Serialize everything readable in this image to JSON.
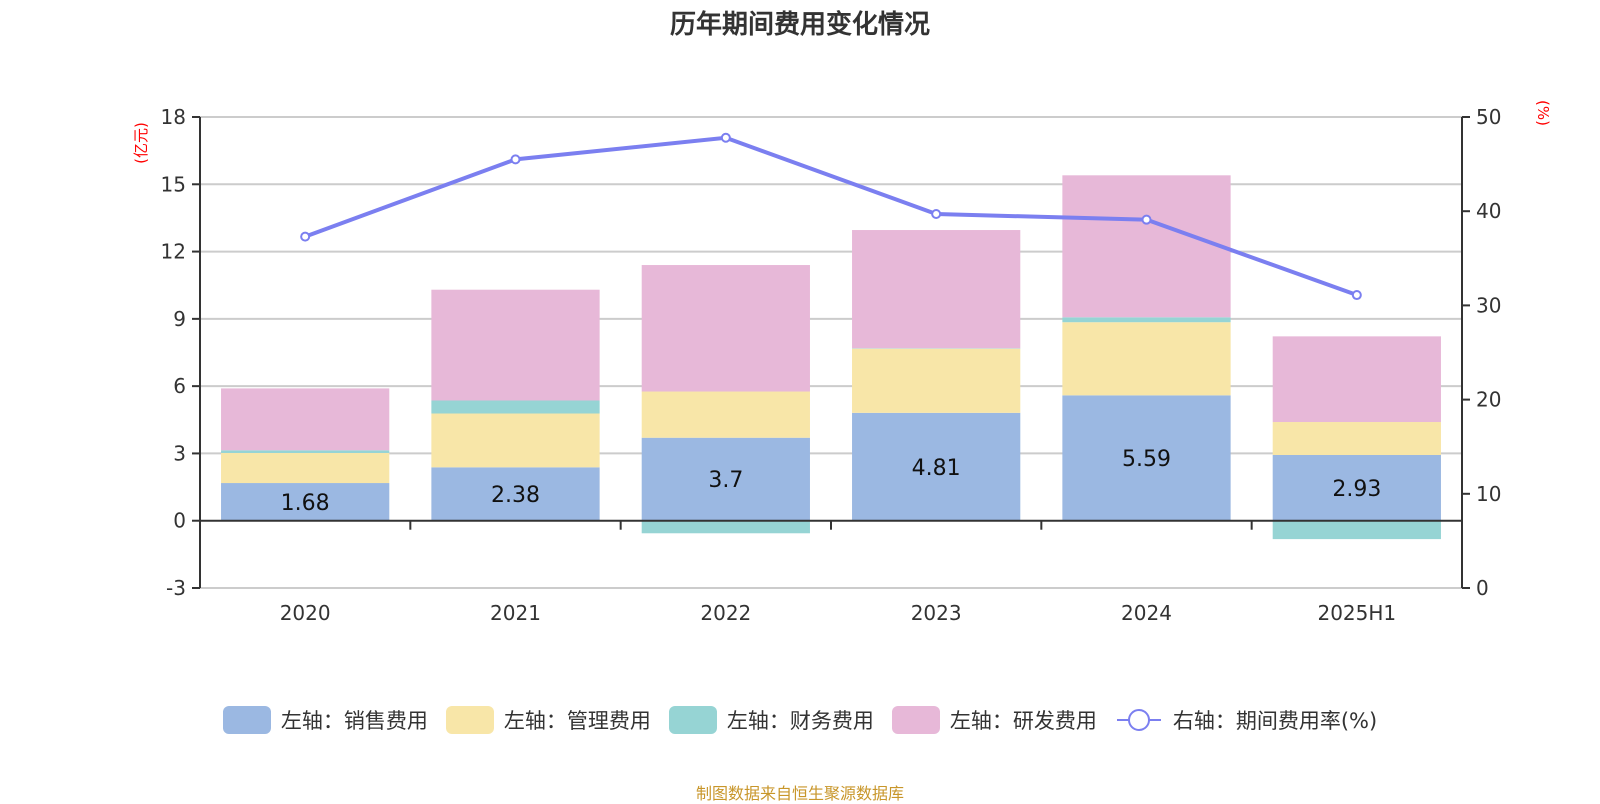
{
  "chart_data": {
    "type": "bar",
    "title": "历年期间费用变化情况",
    "categories": [
      "2020",
      "2021",
      "2022",
      "2023",
      "2024",
      "2025H1"
    ],
    "stacked": true,
    "left_axis": {
      "unit_label": "(亿元)",
      "ylim": [
        -3,
        18
      ],
      "ticks": [
        -3,
        0,
        3,
        6,
        9,
        12,
        15,
        18
      ]
    },
    "right_axis": {
      "unit_label": "(%)",
      "ylim": [
        0,
        50
      ],
      "ticks": [
        0,
        10,
        20,
        30,
        40,
        50
      ]
    },
    "grid": true,
    "legend_position": "bottom",
    "series": [
      {
        "name": "左轴：销售费用",
        "axis": "left",
        "type": "bar",
        "color": "#9bb8e2",
        "values": [
          1.68,
          2.38,
          3.7,
          4.81,
          5.59,
          2.93
        ],
        "show_labels": true
      },
      {
        "name": "左轴：管理费用",
        "axis": "left",
        "type": "bar",
        "color": "#f8e6a8",
        "values": [
          1.34,
          2.4,
          2.06,
          2.86,
          3.26,
          1.47
        ]
      },
      {
        "name": "左轴：财务费用",
        "axis": "left",
        "type": "bar",
        "color": "#96d4d4",
        "values": [
          0.12,
          0.58,
          -0.56,
          0.02,
          0.22,
          -0.82
        ]
      },
      {
        "name": "左轴：研发费用",
        "axis": "left",
        "type": "bar",
        "color": "#e7b8d8",
        "values": [
          2.76,
          4.94,
          5.64,
          5.27,
          6.33,
          3.82
        ]
      },
      {
        "name": "右轴：期间费用率(%)",
        "axis": "right",
        "type": "line",
        "color": "#7b7ff0",
        "values": [
          37.3,
          45.5,
          47.8,
          39.7,
          39.1,
          31.1
        ]
      }
    ],
    "source_note": "制图数据来自恒生聚源数据库"
  }
}
